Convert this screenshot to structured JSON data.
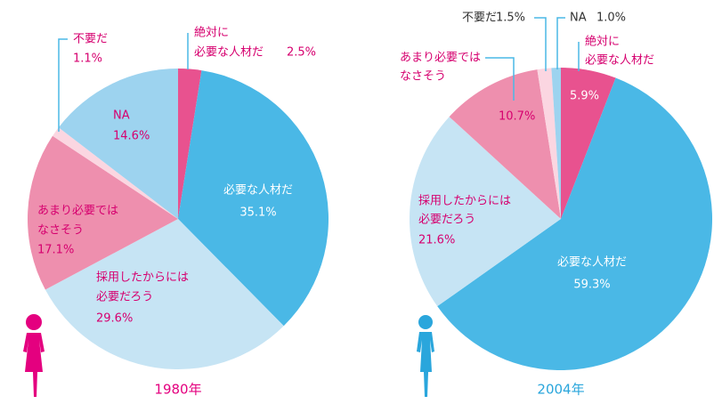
{
  "chart_data": [
    {
      "type": "pie",
      "title": "1980年",
      "categories": [
        [
          "絶対に",
          "必要な人材だ"
        ],
        [
          "必要な人材だ"
        ],
        [
          "採用したからには",
          "必要だろう"
        ],
        [
          "あまり必要では",
          "なさそう"
        ],
        [
          "不要だ"
        ],
        [
          "NA"
        ]
      ],
      "values": [
        2.5,
        35.1,
        29.6,
        17.1,
        1.1,
        14.6
      ],
      "value_labels": [
        "2.5%",
        "35.1%",
        "29.6%",
        "17.1%",
        "1.1%",
        "14.6%"
      ],
      "colors": [
        "#e8528f",
        "#4ab8e6",
        "#c6e4f4",
        "#ee8fae",
        "#fbd6e1",
        "#9dd3ef"
      ]
    },
    {
      "type": "pie",
      "title": "2004年",
      "categories": [
        [
          "絶対に",
          "必要な人材だ"
        ],
        [
          "必要な人材だ"
        ],
        [
          "採用したからには",
          "必要だろう"
        ],
        [
          "あまり必要では",
          "なさそう"
        ],
        [
          "不要だ"
        ],
        [
          "NA"
        ]
      ],
      "values": [
        5.9,
        59.3,
        21.6,
        10.7,
        1.5,
        1.0
      ],
      "value_labels": [
        "5.9%",
        "59.3%",
        "21.6%",
        "10.7%",
        "1.5%",
        "1.0%"
      ],
      "colors": [
        "#e8528f",
        "#4ab8e6",
        "#c6e4f4",
        "#ee8fae",
        "#fbd6e1",
        "#9dd3ef"
      ]
    }
  ]
}
